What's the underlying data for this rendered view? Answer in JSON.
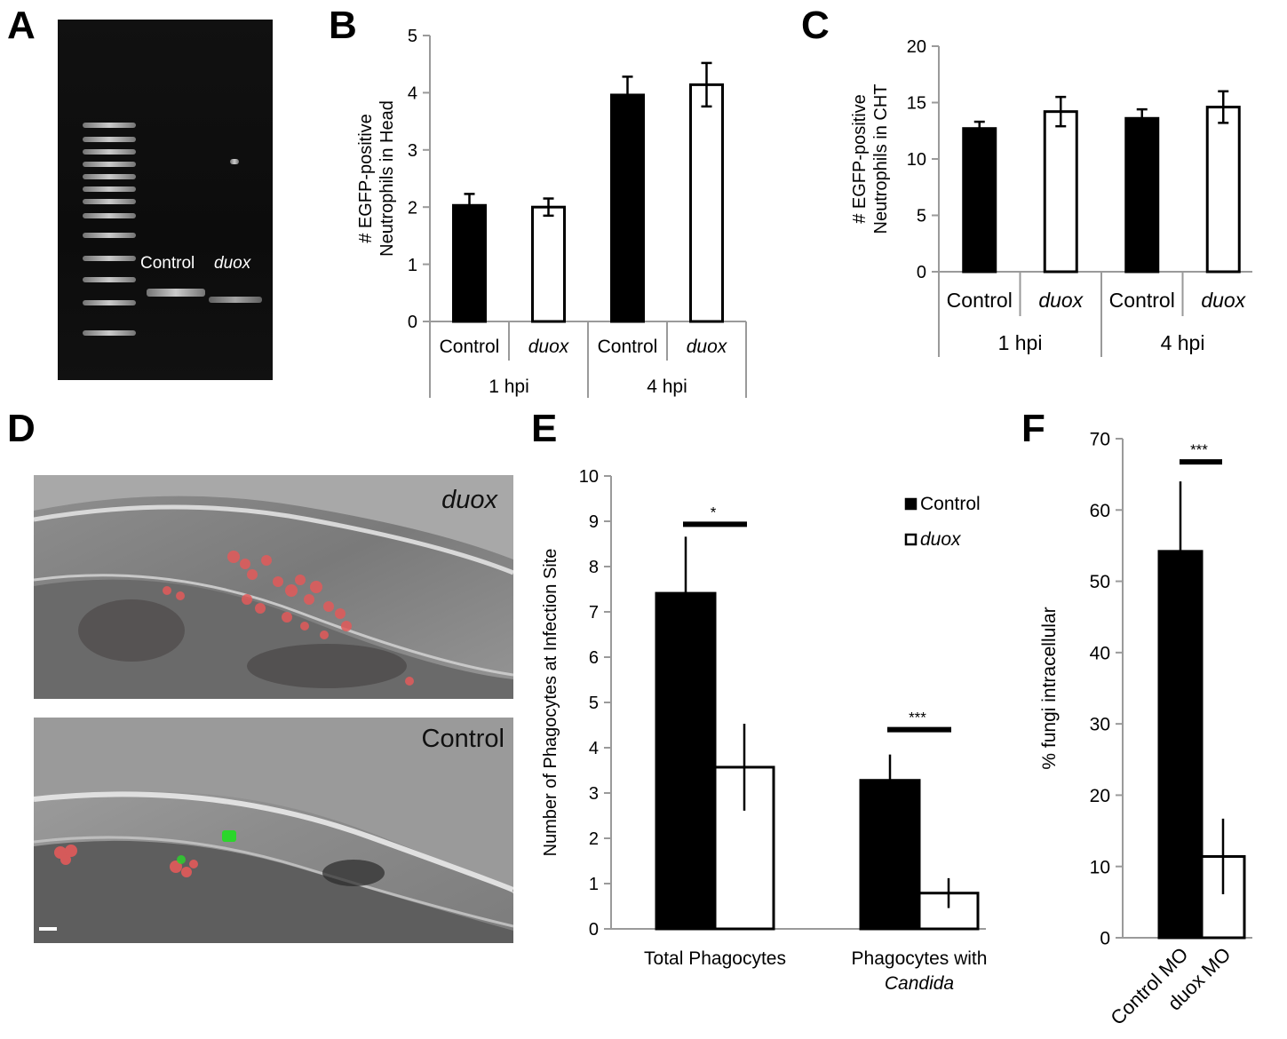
{
  "panels": {
    "A": {
      "letter": "A",
      "lane_labels": [
        "Control",
        "duox"
      ]
    },
    "B": {
      "letter": "B"
    },
    "C": {
      "letter": "C"
    },
    "D": {
      "letter": "D",
      "image_labels": [
        "duox",
        "Control"
      ]
    },
    "E": {
      "letter": "E"
    },
    "F": {
      "letter": "F"
    }
  },
  "colors": {
    "control_fill": "#000000",
    "duox_fill": "#ffffff",
    "axis": "#9a9a9a",
    "text": "#000000"
  },
  "chart_data": [
    {
      "id": "B",
      "type": "bar",
      "ylabel": "# EGFP-positive Neutrophils in Head",
      "ylim": [
        0,
        5
      ],
      "yticks": [
        0,
        1,
        2,
        3,
        4,
        5
      ],
      "groups": [
        "1 hpi",
        "4 hpi"
      ],
      "categories": [
        "Control",
        "duox",
        "Control",
        "duox"
      ],
      "values": [
        2.03,
        2.0,
        3.96,
        4.14
      ],
      "errors": [
        0.2,
        0.15,
        0.32,
        0.38
      ]
    },
    {
      "id": "C",
      "type": "bar",
      "ylabel": "# EGFP-positive Neutrophils in CHT",
      "ylim": [
        0,
        20
      ],
      "yticks": [
        0,
        5,
        10,
        15,
        20
      ],
      "groups": [
        "1 hpi",
        "4 hpi"
      ],
      "categories": [
        "Control",
        "duox",
        "Control",
        "duox"
      ],
      "values": [
        12.7,
        14.2,
        13.6,
        14.6
      ],
      "errors": [
        0.6,
        1.3,
        0.8,
        1.4
      ]
    },
    {
      "id": "E",
      "type": "bar",
      "ylabel": "Number of Phagocytes at Infection Site",
      "ylim": [
        0,
        10
      ],
      "yticks": [
        0,
        1,
        2,
        3,
        4,
        5,
        6,
        7,
        8,
        9,
        10
      ],
      "categories": [
        "Total Phagocytes",
        "Phagocytes with Candida"
      ],
      "category_lines": [
        [
          "Total Phagocytes"
        ],
        [
          "Phagocytes with",
          "Candida"
        ]
      ],
      "series": [
        {
          "name": "Control",
          "values": [
            7.41,
            3.28
          ],
          "errors": [
            1.25,
            0.57
          ]
        },
        {
          "name": "duox",
          "values": [
            3.57,
            0.79
          ],
          "errors": [
            0.96,
            0.33
          ]
        }
      ],
      "significance": [
        "*",
        "***"
      ],
      "legend": "top-right"
    },
    {
      "id": "F",
      "type": "bar",
      "ylabel": "% fungi intracellular",
      "ylim": [
        0,
        70
      ],
      "yticks": [
        0,
        10,
        20,
        30,
        40,
        50,
        60,
        70
      ],
      "categories": [
        "Control MO",
        "duox MO"
      ],
      "values": [
        54.2,
        11.4
      ],
      "errors": [
        9.8,
        5.3
      ],
      "significance": [
        "***"
      ]
    }
  ]
}
